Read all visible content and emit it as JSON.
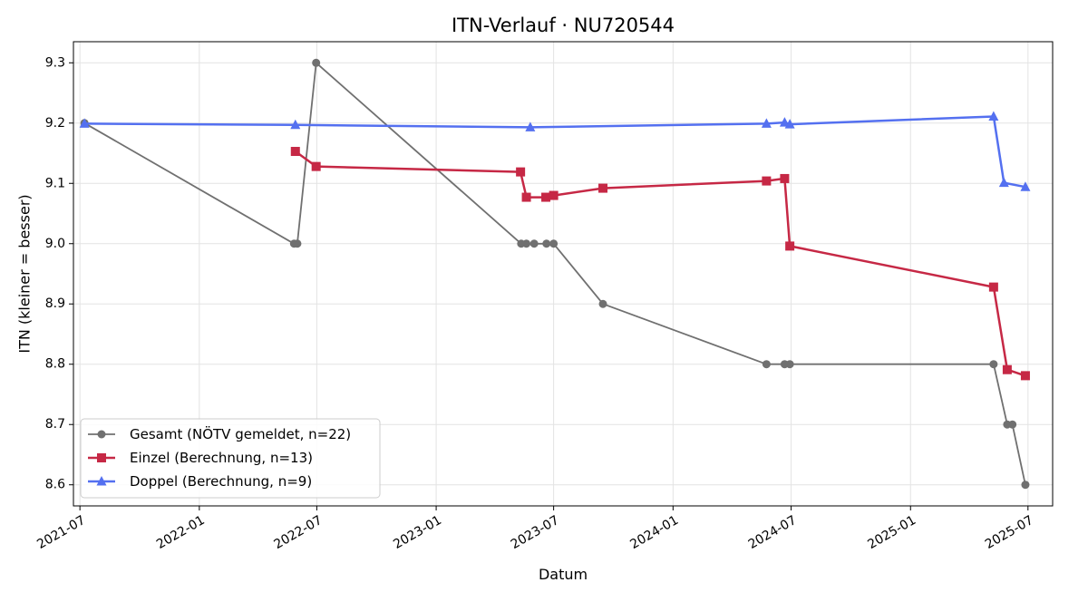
{
  "chart_data": {
    "type": "line",
    "title": "ITN-Verlauf · NU720544",
    "xlabel": "Datum",
    "ylabel": "ITN  (kleiner = besser)",
    "x_type": "date",
    "xlim": [
      "2021-06-21",
      "2025-08-08"
    ],
    "ylim": [
      8.565,
      9.335
    ],
    "x_ticks": [
      "2021-07-01",
      "2022-01-01",
      "2022-07-01",
      "2023-01-01",
      "2023-07-01",
      "2024-01-01",
      "2024-07-01",
      "2025-01-01",
      "2025-07-01"
    ],
    "x_tick_labels": [
      "2021-07",
      "2022-01",
      "2022-07",
      "2023-01",
      "2023-07",
      "2024-01",
      "2024-07",
      "2025-01",
      "2025-07"
    ],
    "y_ticks": [
      8.6,
      8.7,
      8.8,
      8.9,
      9.0,
      9.1,
      9.2,
      9.3
    ],
    "y_tick_labels": [
      "8.6",
      "8.7",
      "8.8",
      "8.9",
      "9.0",
      "9.1",
      "9.2",
      "9.3"
    ],
    "grid": true,
    "legend_position": "lower-left",
    "series": [
      {
        "name": "Gesamt (NÖTV gemeldet, n=22)",
        "color": "#707070",
        "marker": "circle",
        "x": [
          "2021-07-08",
          "2022-05-27",
          "2022-06-01",
          "2022-06-30",
          "2023-05-12",
          "2023-05-20",
          "2023-06-01",
          "2023-06-20",
          "2023-07-01",
          "2023-09-15",
          "2024-05-24",
          "2024-06-21",
          "2024-06-29",
          "2025-05-09",
          "2025-05-30",
          "2025-06-07",
          "2025-06-27"
        ],
        "y": [
          9.2,
          9.0,
          9.0,
          9.3,
          9.0,
          9.0,
          9.0,
          9.0,
          9.0,
          8.9,
          8.8,
          8.8,
          8.8,
          8.8,
          8.7,
          8.7,
          8.6
        ]
      },
      {
        "name": "Einzel (Berechnung, n=13)",
        "color": "#c62845",
        "marker": "square",
        "x": [
          "2022-05-29",
          "2022-06-30",
          "2023-05-11",
          "2023-05-20",
          "2023-06-19",
          "2023-07-01",
          "2023-09-15",
          "2024-05-24",
          "2024-06-21",
          "2024-06-29",
          "2025-05-09",
          "2025-05-30",
          "2025-06-27"
        ],
        "y": [
          9.153,
          9.128,
          9.119,
          9.077,
          9.077,
          9.08,
          9.092,
          9.104,
          9.108,
          8.996,
          8.928,
          8.791,
          8.781
        ]
      },
      {
        "name": "Doppel (Berechnung, n=9)",
        "color": "#5470f0",
        "marker": "triangle",
        "x": [
          "2021-07-08",
          "2022-05-29",
          "2023-05-26",
          "2024-05-24",
          "2024-06-21",
          "2024-06-29",
          "2025-05-09",
          "2025-05-25",
          "2025-06-27"
        ],
        "y": [
          9.199,
          9.197,
          9.193,
          9.199,
          9.201,
          9.198,
          9.211,
          9.101,
          9.094
        ]
      }
    ]
  }
}
